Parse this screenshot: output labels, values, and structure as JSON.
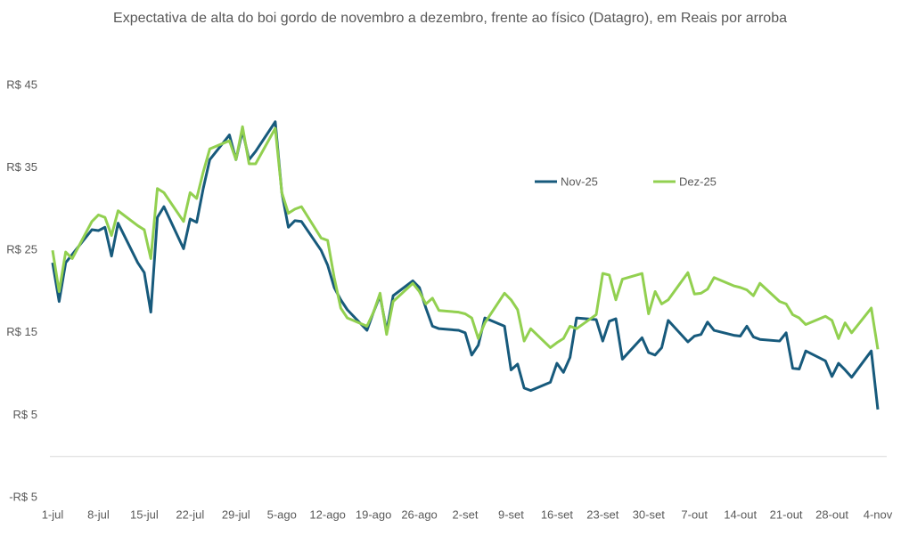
{
  "chart_data": {
    "type": "line",
    "title": "Expectativa de alta do boi gordo de novembro a dezembro, frente ao físico (Datagro), em Reais por arroba",
    "x": [
      0,
      1,
      2,
      3,
      6,
      7,
      8,
      9,
      10,
      13,
      14,
      15,
      16,
      17,
      20,
      21,
      22,
      23,
      24,
      27,
      28,
      29,
      30,
      31,
      34,
      35,
      36,
      37,
      38,
      41,
      42,
      43,
      44,
      45,
      48,
      49,
      50,
      51,
      52,
      55,
      56,
      57,
      58,
      59,
      62,
      63,
      64,
      65,
      66,
      69,
      70,
      71,
      72,
      73,
      76,
      77,
      78,
      79,
      80,
      83,
      84,
      85,
      86,
      87,
      90,
      91,
      92,
      93,
      94,
      97,
      98,
      99,
      100,
      101,
      104,
      105,
      106,
      107,
      108,
      111,
      112,
      113,
      114,
      115,
      118,
      119,
      120,
      121,
      122,
      125,
      126
    ],
    "series": [
      {
        "name": "Nov-25",
        "color": "#175a7c",
        "values": [
          23.5,
          18.8,
          23.5,
          24.5,
          27.5,
          27.4,
          27.8,
          24.3,
          28.3,
          23.5,
          22.3,
          17.5,
          29,
          30.3,
          25.2,
          28.8,
          28.4,
          32.5,
          36,
          39,
          36,
          39.5,
          36,
          37,
          40.6,
          32,
          27.8,
          28.6,
          28.5,
          25,
          23.2,
          20.5,
          19,
          17.8,
          15.3,
          17.5,
          19.5,
          15.2,
          19.5,
          21.3,
          20.5,
          18,
          15.8,
          15.5,
          15.3,
          15,
          12.3,
          13.5,
          16.8,
          15.8,
          10.5,
          11.2,
          8.3,
          8,
          9,
          11.3,
          10.2,
          12,
          16.8,
          16.6,
          14,
          16.4,
          16.7,
          11.8,
          14.4,
          12.6,
          12.3,
          13.2,
          16.5,
          13.9,
          14.6,
          14.8,
          16.3,
          15.3,
          14.7,
          14.6,
          15.8,
          14.5,
          14.2,
          14,
          15,
          10.7,
          10.6,
          12.8,
          11.6,
          9.7,
          11.3,
          10.5,
          9.6,
          12.8,
          5.7
        ]
      },
      {
        "name": "Dez-25",
        "color": "#92d050",
        "values": [
          25,
          20,
          24.8,
          24,
          28.5,
          29.3,
          29,
          26.8,
          29.8,
          28,
          27.5,
          24,
          32.5,
          32,
          28.5,
          32,
          31.3,
          34.5,
          37.3,
          38.3,
          36,
          40,
          35.5,
          35.5,
          39.8,
          32,
          29.5,
          30,
          30.3,
          26.5,
          26.2,
          21.7,
          18,
          16.8,
          15.8,
          17.5,
          19.8,
          14.8,
          18.8,
          21,
          20,
          18.5,
          19.2,
          17.7,
          17.5,
          17.3,
          16.8,
          14.3,
          16.2,
          19.8,
          19,
          17.8,
          14,
          15.5,
          13.2,
          13.8,
          14.3,
          15.8,
          15.5,
          17.2,
          22.2,
          22,
          19,
          21.5,
          22.2,
          17.3,
          20,
          18.5,
          19,
          22.3,
          19.7,
          19.8,
          20.3,
          21.7,
          20.7,
          20.5,
          20.2,
          19.5,
          21,
          18.8,
          18.5,
          17.2,
          16.8,
          16,
          17,
          16.5,
          14.3,
          16.2,
          15,
          18,
          13
        ]
      }
    ],
    "xlim": [
      0,
      126
    ],
    "xticks": [
      {
        "value": 0,
        "label": "1-jul"
      },
      {
        "value": 7,
        "label": "8-jul"
      },
      {
        "value": 14,
        "label": "15-jul"
      },
      {
        "value": 21,
        "label": "22-jul"
      },
      {
        "value": 28,
        "label": "29-jul"
      },
      {
        "value": 35,
        "label": "5-ago"
      },
      {
        "value": 42,
        "label": "12-ago"
      },
      {
        "value": 49,
        "label": "19-ago"
      },
      {
        "value": 56,
        "label": "26-ago"
      },
      {
        "value": 63,
        "label": "2-set"
      },
      {
        "value": 70,
        "label": "9-set"
      },
      {
        "value": 77,
        "label": "16-set"
      },
      {
        "value": 84,
        "label": "23-set"
      },
      {
        "value": 91,
        "label": "30-set"
      },
      {
        "value": 98,
        "label": "7-out"
      },
      {
        "value": 105,
        "label": "14-out"
      },
      {
        "value": 112,
        "label": "21-out"
      },
      {
        "value": 119,
        "label": "28-out"
      },
      {
        "value": 126,
        "label": "4-nov"
      }
    ],
    "ylim": [
      -5,
      45
    ],
    "yticks": [
      {
        "value": -5,
        "label": "-R$ 5"
      },
      {
        "value": 5,
        "label": "R$ 5"
      },
      {
        "value": 15,
        "label": "R$ 15"
      },
      {
        "value": 25,
        "label": "R$ 25"
      },
      {
        "value": 35,
        "label": "R$ 35"
      },
      {
        "value": 45,
        "label": "R$ 45"
      }
    ],
    "grid": false
  }
}
